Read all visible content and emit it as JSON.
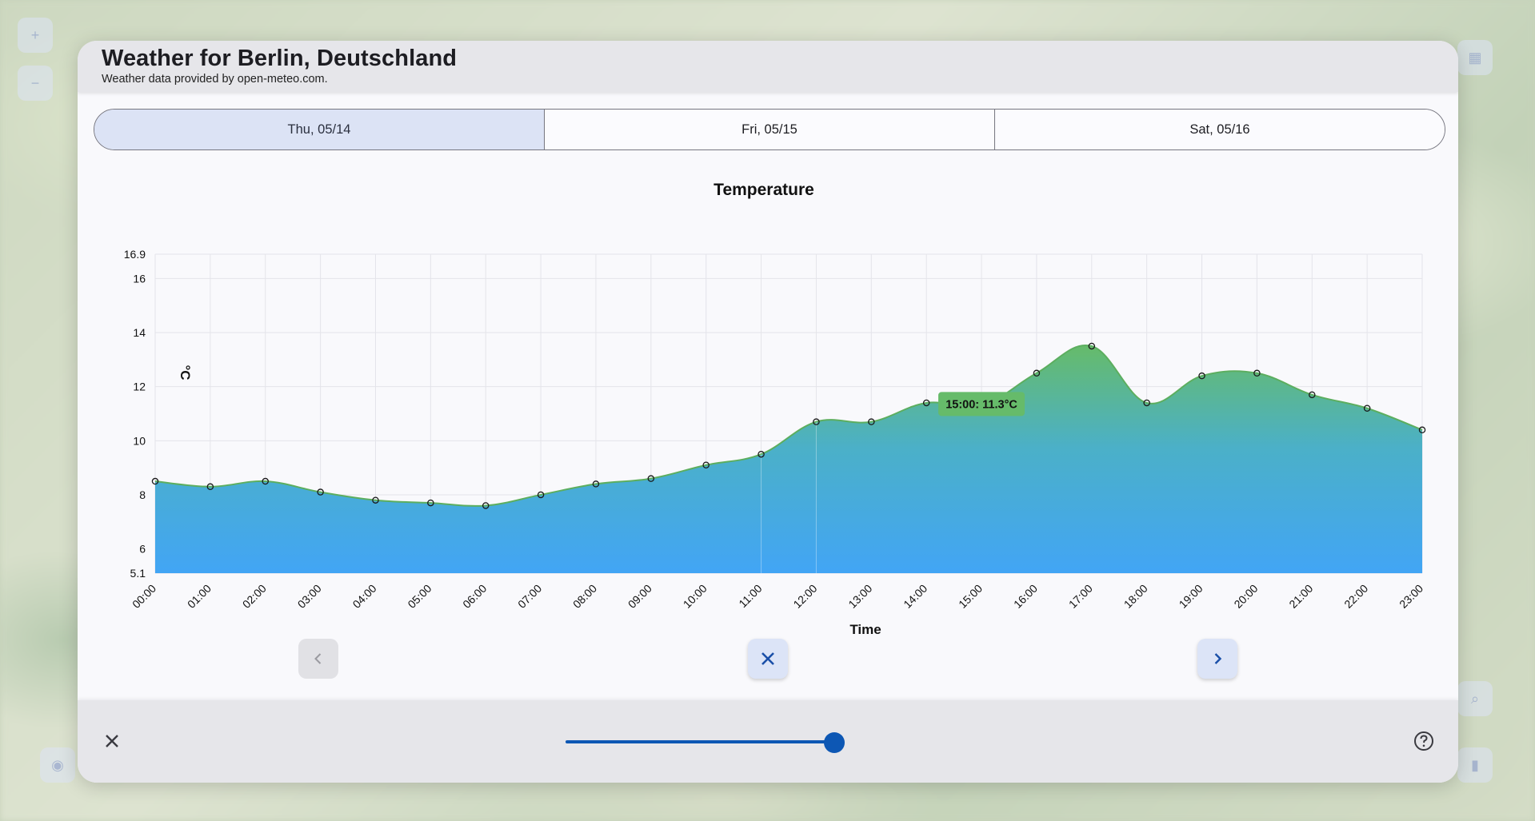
{
  "dialog": {
    "title": "Weather for Berlin, Deutschland",
    "subtitle": "Weather data provided by open-meteo.com."
  },
  "tabs": [
    {
      "label": "Thu, 05/14",
      "selected": true
    },
    {
      "label": "Fri, 05/15",
      "selected": false
    },
    {
      "label": "Sat, 05/16",
      "selected": false
    }
  ],
  "chart_data": {
    "type": "area",
    "title": "Temperature",
    "xlabel": "Time",
    "ylabel": "°C",
    "x": [
      "00:00",
      "01:00",
      "02:00",
      "03:00",
      "04:00",
      "05:00",
      "06:00",
      "07:00",
      "08:00",
      "09:00",
      "10:00",
      "11:00",
      "12:00",
      "13:00",
      "14:00",
      "15:00",
      "16:00",
      "17:00",
      "18:00",
      "19:00",
      "20:00",
      "21:00",
      "22:00",
      "23:00"
    ],
    "series": [
      {
        "values": [
          8.5,
          8.3,
          8.5,
          8.1,
          7.8,
          7.7,
          7.6,
          8.0,
          8.4,
          8.6,
          9.1,
          9.5,
          10.7,
          10.7,
          11.4,
          11.3,
          12.5,
          13.5,
          11.4,
          12.4,
          12.5,
          11.7,
          11.2,
          10.4
        ]
      }
    ],
    "ylim": [
      5.1,
      16.9
    ],
    "yticks": [
      "5.1",
      "6",
      "8",
      "10",
      "12",
      "14",
      "16",
      "16.9"
    ],
    "grid": true,
    "gradient_colors": {
      "low": "#42a5f5",
      "high": "#66bb6a"
    },
    "tooltip": {
      "index": 15,
      "text": "15:00: 11.3°C",
      "color": "#66bb6a"
    }
  },
  "nav": {
    "prev_icon": "chevron-left-icon",
    "close_icon": "close-icon",
    "next_icon": "chevron-right-icon"
  },
  "bottom_bar": {
    "close_icon": "close-icon",
    "slider_level": 0.95,
    "slider_color": "#0d57b4",
    "help_icon": "help-circle-icon"
  }
}
